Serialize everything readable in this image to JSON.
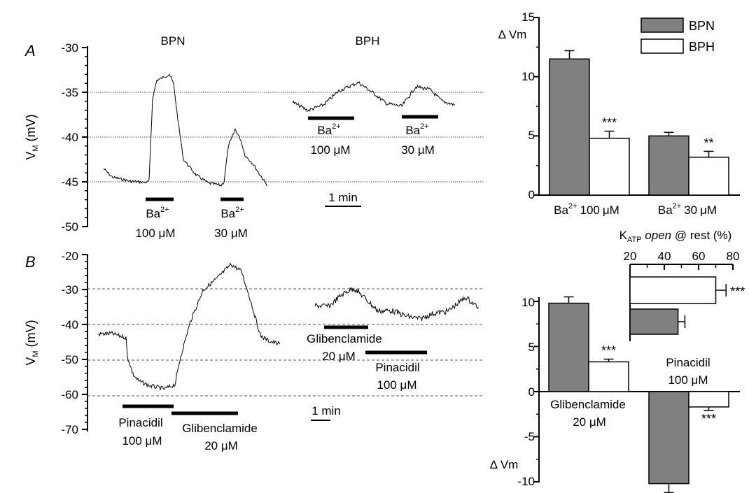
{
  "panels": {
    "a": "A",
    "b": "B"
  },
  "colors": {
    "bpn": "#808080",
    "bph": "#ffffff",
    "trace": "#000000",
    "grid": "#555555"
  },
  "units": {
    "um": "μM"
  },
  "traces": {
    "ylabel_v": "V",
    "ylabel_sub": "M",
    "ylabel_rest": " (mV)",
    "a": {
      "yticks": [
        "-30",
        "-35",
        "-40",
        "-45",
        "-50"
      ],
      "bpn_label": "BPN",
      "bph_label": "BPH",
      "ba": "Ba",
      "ba_sup": "2+",
      "conc1": "100 μM",
      "conc2": "30 μM",
      "scale": "1 min"
    },
    "b": {
      "yticks": [
        "-20",
        "-30",
        "-40",
        "-50",
        "-60",
        "-70"
      ],
      "pin": "Pinacidil",
      "pin_conc": "100 μM",
      "gli": "Glibenclamide",
      "gli_conc": "20 μM",
      "scale": "1 min"
    }
  },
  "chart_data": [
    {
      "type": "bar",
      "ylabel": "Δ Vm",
      "ylim": [
        0,
        15
      ],
      "yticks": [
        "0",
        "5",
        "10",
        "15"
      ],
      "legend": "top-right",
      "categories": [
        "100",
        "30"
      ],
      "category_prefix": "Ba",
      "category_sup": "2+",
      "category_unit": "μM",
      "series": [
        {
          "name": "BPN",
          "values": [
            11.5,
            5.0
          ],
          "errors": [
            0.7,
            0.3
          ]
        },
        {
          "name": "BPH",
          "values": [
            4.8,
            3.2
          ],
          "errors": [
            0.6,
            0.5
          ]
        }
      ],
      "significance": [
        "",
        "***",
        "",
        "**"
      ]
    },
    {
      "type": "bar",
      "ylabel": "Δ Vm",
      "ylim": [
        -10,
        10
      ],
      "yticks": [
        "10",
        "5",
        "0",
        "-5",
        "-10"
      ],
      "categories": [
        "Glibenclamide",
        "Pinacidil"
      ],
      "category_conc": [
        "20 μM",
        "100 μM"
      ],
      "series": [
        {
          "name": "BPN",
          "values": [
            9.8,
            -10.2
          ],
          "errors": [
            0.7,
            1.0
          ]
        },
        {
          "name": "BPH",
          "values": [
            3.3,
            -1.7
          ],
          "errors": [
            0.3,
            0.4
          ]
        }
      ],
      "significance": [
        "",
        "***",
        "",
        "***"
      ]
    },
    {
      "type": "bar",
      "orientation": "horizontal",
      "title_k": "K",
      "title_sub": "ATP",
      "title_it": " open",
      "title_rest": " @ rest (%)",
      "xlim": [
        20,
        80
      ],
      "xticks": [
        "20",
        "40",
        "60",
        "80"
      ],
      "series": [
        {
          "name": "BPH",
          "value": 70,
          "error": 6,
          "significance": "***"
        },
        {
          "name": "BPN",
          "value": 48,
          "error": 4,
          "significance": ""
        }
      ]
    }
  ]
}
